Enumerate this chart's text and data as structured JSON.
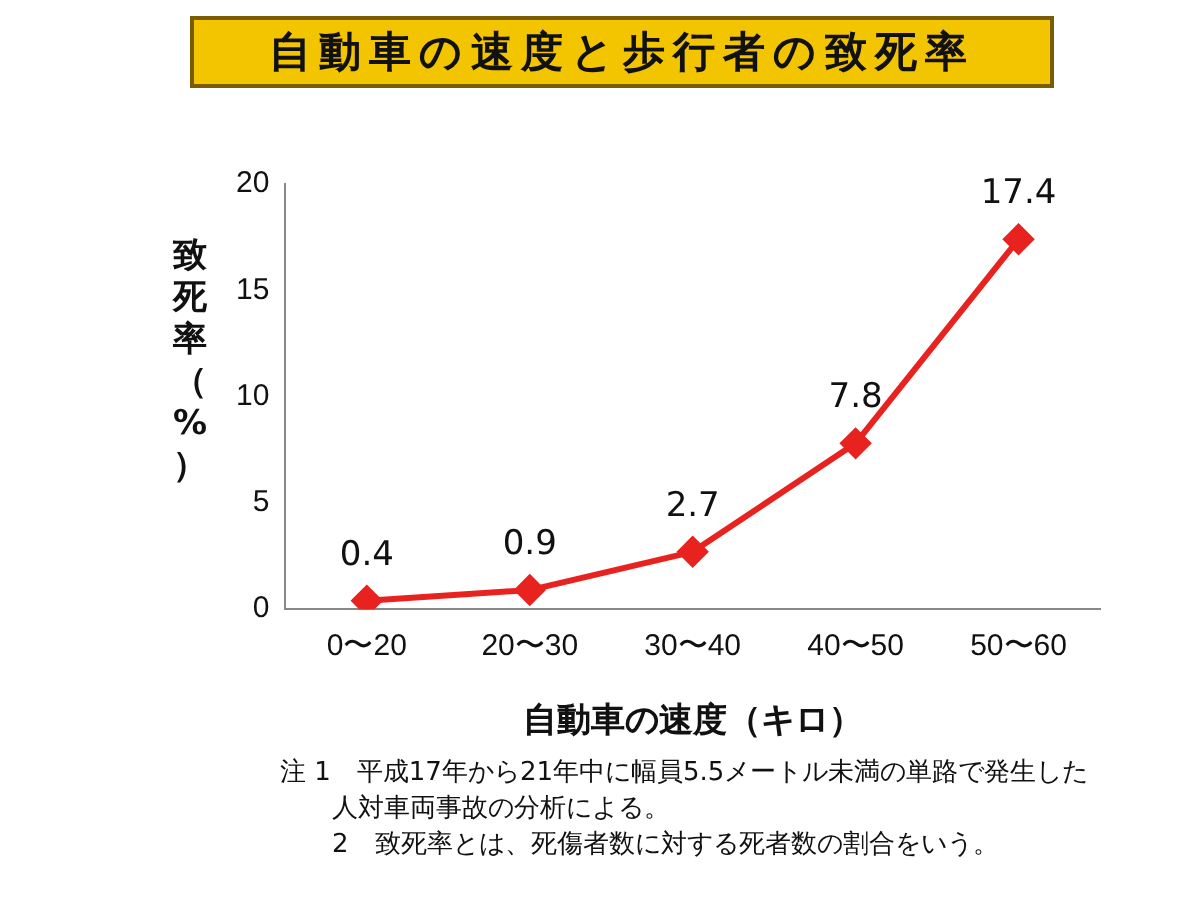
{
  "chart_data": {
    "type": "line",
    "title": "自動車の速度と歩行者の致死率",
    "xlabel": "自動車の速度（キロ）",
    "ylabel": "致死率（%）",
    "categories": [
      "0〜20",
      "20〜30",
      "30〜40",
      "40〜50",
      "50〜60"
    ],
    "values": [
      0.4,
      0.9,
      2.7,
      7.8,
      17.4
    ],
    "color": "#e8231f",
    "ylim": [
      0,
      20
    ],
    "yticks": [
      0,
      5,
      10,
      15,
      20
    ],
    "grid": false,
    "legend": false,
    "marker": "diamond",
    "line_style": "solid",
    "data_labels": true,
    "annotations": [
      "注 1　平成17年から21年中に幅員5.5メートル未満の単路で発生した人対車両事故の分析による。",
      "2　致死率とは、死傷者数に対する死者数の割合をいう。"
    ]
  }
}
